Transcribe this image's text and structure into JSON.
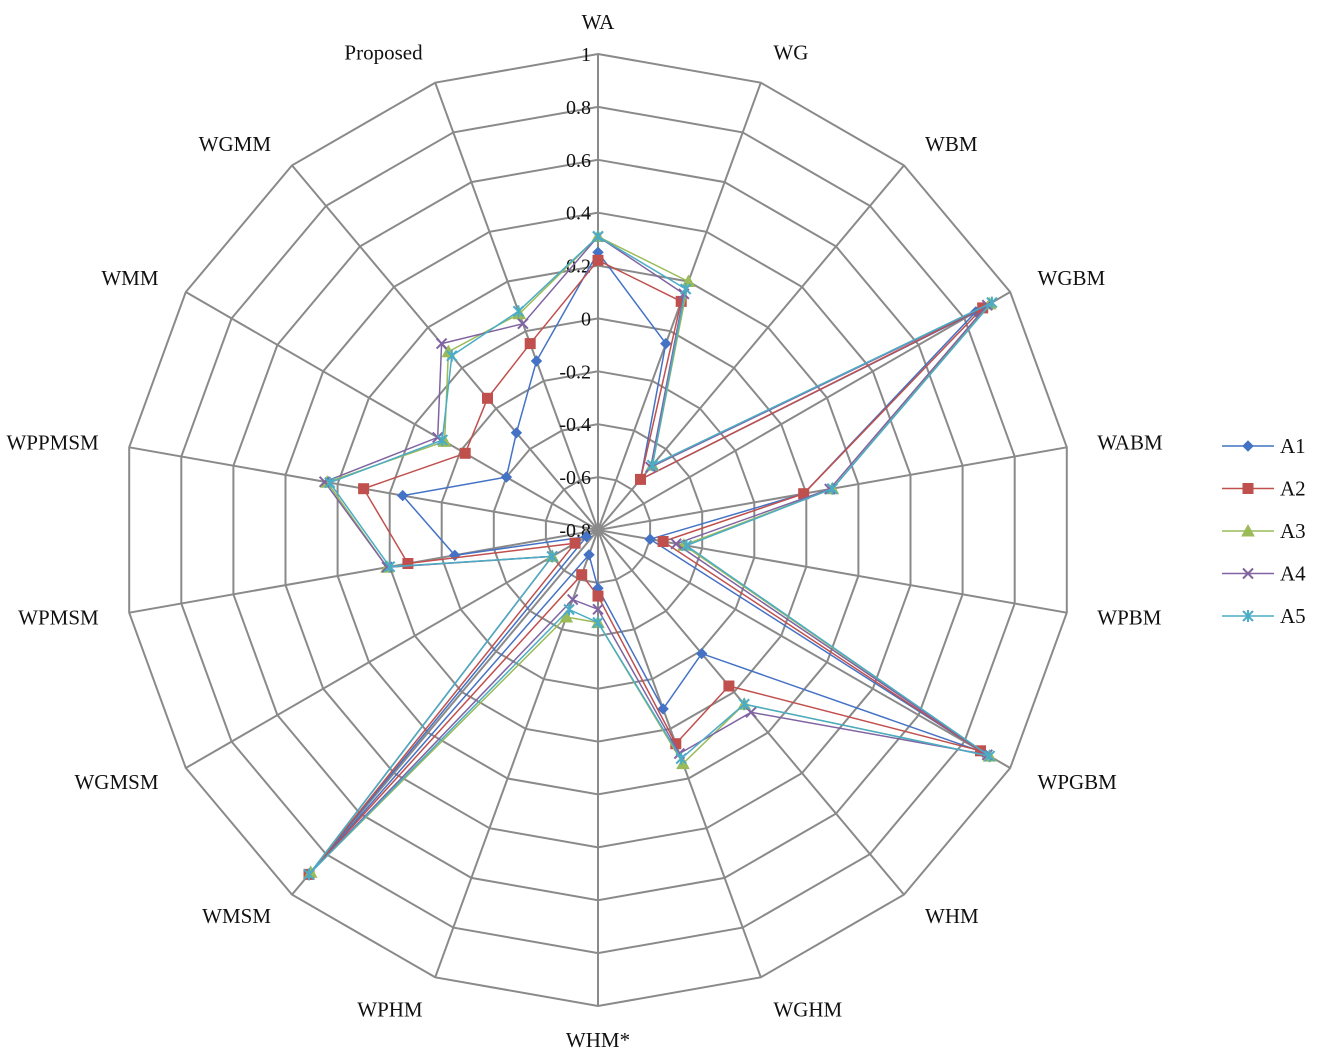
{
  "chart_data": {
    "type": "radar",
    "axes": [
      "WA",
      "WG",
      "WBM",
      "WGBM",
      "WABM",
      "WPBM",
      "WPGBM",
      "WHM",
      "WGHM",
      "WHM*",
      "WPHM",
      "WMSM",
      "WGMSM",
      "WPMSM",
      "WPPMSM",
      "WMM",
      "WGMM",
      "Proposed"
    ],
    "rlim": [
      -0.8,
      1
    ],
    "ticks": [
      1,
      0.8,
      0.6,
      0.4,
      0.2,
      0,
      -0.2,
      -0.4,
      -0.6,
      -0.8
    ],
    "tick_labels": [
      "1",
      "0.8",
      "0.6",
      "0.4",
      "0.2",
      "0",
      "-0.2",
      "-0.4",
      "-0.6",
      "-0.8"
    ],
    "grid": true,
    "legend_position": "right",
    "series": [
      {
        "name": "A1",
        "color": "#4472C4",
        "marker": "diamond",
        "values": [
          0.25,
          -0.05,
          -0.55,
          0.85,
          -0.01,
          -0.6,
          0.88,
          -0.19,
          -0.08,
          -0.58,
          -0.7,
          0.9,
          -0.75,
          -0.25,
          -0.05,
          -0.4,
          -0.32,
          -0.12
        ]
      },
      {
        "name": "A2",
        "color": "#C0504D",
        "marker": "square",
        "values": [
          0.22,
          0.12,
          -0.55,
          0.88,
          -0.01,
          -0.55,
          0.87,
          -0.03,
          0.06,
          -0.55,
          -0.62,
          0.9,
          -0.7,
          -0.07,
          0.1,
          -0.22,
          -0.15,
          -0.05
        ]
      },
      {
        "name": "A3",
        "color": "#9BBB59",
        "marker": "triangle",
        "values": [
          0.31,
          0.2,
          -0.48,
          0.91,
          0.1,
          -0.47,
          0.91,
          0.06,
          0.14,
          -0.45,
          -0.45,
          0.89,
          -0.6,
          0.01,
          0.24,
          -0.13,
          0.08,
          0.07
        ]
      },
      {
        "name": "A4",
        "color": "#8064A2",
        "marker": "x",
        "values": [
          0.31,
          0.15,
          -0.49,
          0.9,
          0.09,
          -0.5,
          0.9,
          0.1,
          0.1,
          -0.5,
          -0.52,
          0.9,
          -0.6,
          0.01,
          0.25,
          -0.1,
          0.12,
          0.03
        ]
      },
      {
        "name": "A5",
        "color": "#4BACC6",
        "marker": "asterisk",
        "values": [
          0.31,
          0.17,
          -0.48,
          0.92,
          0.1,
          -0.46,
          0.91,
          0.06,
          0.12,
          -0.45,
          -0.48,
          0.9,
          -0.6,
          0.0,
          0.23,
          -0.12,
          0.06,
          0.08
        ]
      }
    ]
  }
}
